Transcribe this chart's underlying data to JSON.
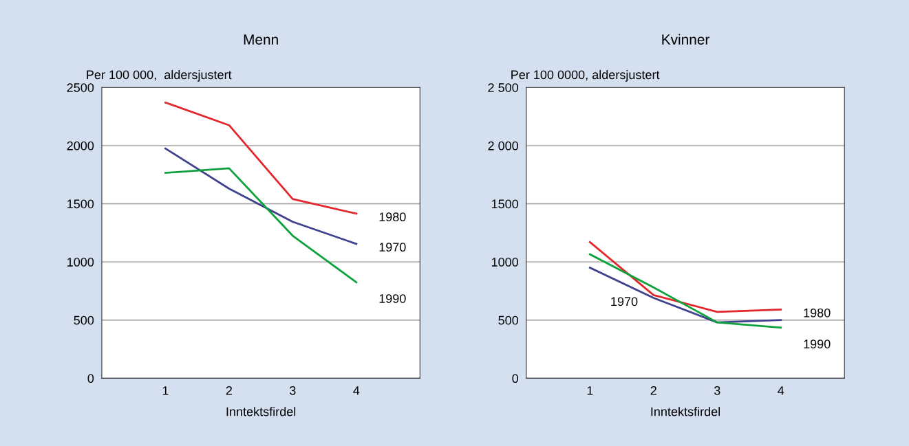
{
  "chart_data": [
    {
      "type": "line",
      "title": "Menn",
      "ylabel": "Per 100 000,  aldersjustert",
      "xlabel": "Inntektsfirdel",
      "x": [
        1,
        2,
        3,
        4
      ],
      "xlim": [
        0,
        5
      ],
      "xticks": [
        1,
        2,
        3,
        4
      ],
      "ylim": [
        0,
        2500
      ],
      "yticks": [
        0,
        500,
        1000,
        1500,
        2000,
        2500
      ],
      "grid": "y",
      "marker": "none",
      "series": [
        {
          "name": "1980",
          "color": "#e3262b",
          "values": [
            2370,
            2175,
            1540,
            1415
          ]
        },
        {
          "name": "1970",
          "color": "#3f418f",
          "values": [
            1975,
            1630,
            1345,
            1155
          ]
        },
        {
          "name": "1990",
          "color": "#0ea23c",
          "values": [
            1765,
            1805,
            1225,
            825
          ]
        }
      ]
    },
    {
      "type": "line",
      "title": "Kvinner",
      "ylabel": "Per 100 0000, aldersjustert",
      "xlabel": "Inntektsfirdel",
      "x": [
        1,
        2,
        3,
        4
      ],
      "xlim": [
        0,
        5
      ],
      "xticks": [
        1,
        2,
        3,
        4
      ],
      "ylim": [
        0,
        2500
      ],
      "yticks": [
        0,
        500,
        1000,
        1500,
        {
          "value": 2000,
          "label": "2 000"
        },
        {
          "value": 2500,
          "label": "2 500"
        }
      ],
      "grid": "y",
      "marker": "none",
      "series": [
        {
          "name": "1980",
          "color": "#e3262b",
          "values": [
            1170,
            715,
            570,
            590
          ]
        },
        {
          "name": "1970",
          "color": "#3f418f",
          "values": [
            950,
            690,
            480,
            500
          ]
        },
        {
          "name": "1990",
          "color": "#0ea23c",
          "values": [
            1065,
            780,
            480,
            435
          ]
        }
      ]
    }
  ]
}
